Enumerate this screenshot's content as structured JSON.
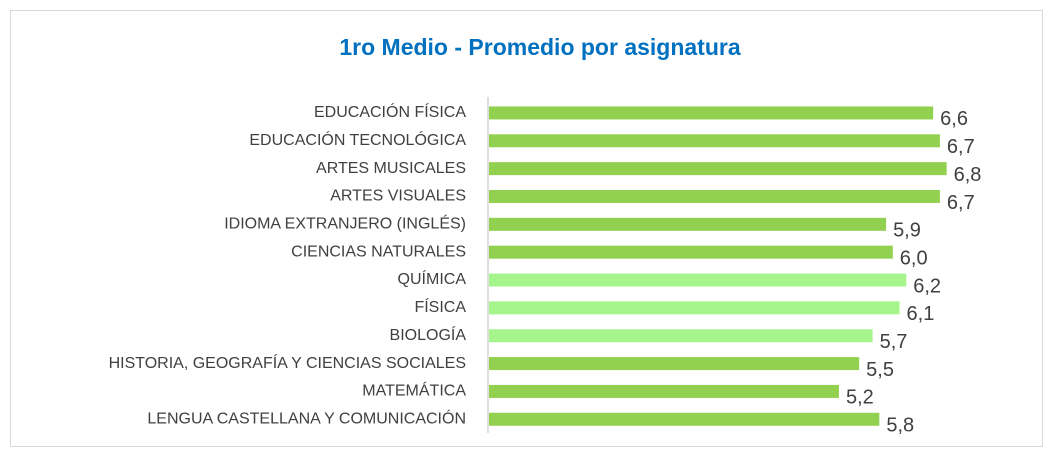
{
  "chart_data": {
    "type": "bar",
    "orientation": "horizontal",
    "title": "1ro Medio - Promedio por asignatura",
    "categories": [
      "EDUCACIÓN FÍSICA",
      "EDUCACIÓN TECNOLÓGICA",
      "ARTES MUSICALES",
      "ARTES VISUALES",
      "IDIOMA EXTRANJERO (INGLÉS)",
      "CIENCIAS NATURALES",
      "QUÍMICA",
      "FÍSICA",
      "BIOLOGÍA",
      "HISTORIA, GEOGRAFÍA Y CIENCIAS SOCIALES",
      "MATEMÁTICA",
      "LENGUA CASTELLANA Y COMUNICACIÓN"
    ],
    "values": [
      6.6,
      6.7,
      6.8,
      6.7,
      5.9,
      6.0,
      6.2,
      6.1,
      5.7,
      5.5,
      5.2,
      5.8
    ],
    "value_labels": [
      "6,6",
      "6,7",
      "6,8",
      "6,7",
      "5,9",
      "6,0",
      "6,2",
      "6,1",
      "5,7",
      "5,5",
      "5,2",
      "5,8"
    ],
    "colors": [
      "#92d050",
      "#92d050",
      "#92d050",
      "#92d050",
      "#92d050",
      "#92d050",
      "#a6f58c",
      "#a6f58c",
      "#a6f58c",
      "#92d050",
      "#92d050",
      "#92d050"
    ]
  }
}
